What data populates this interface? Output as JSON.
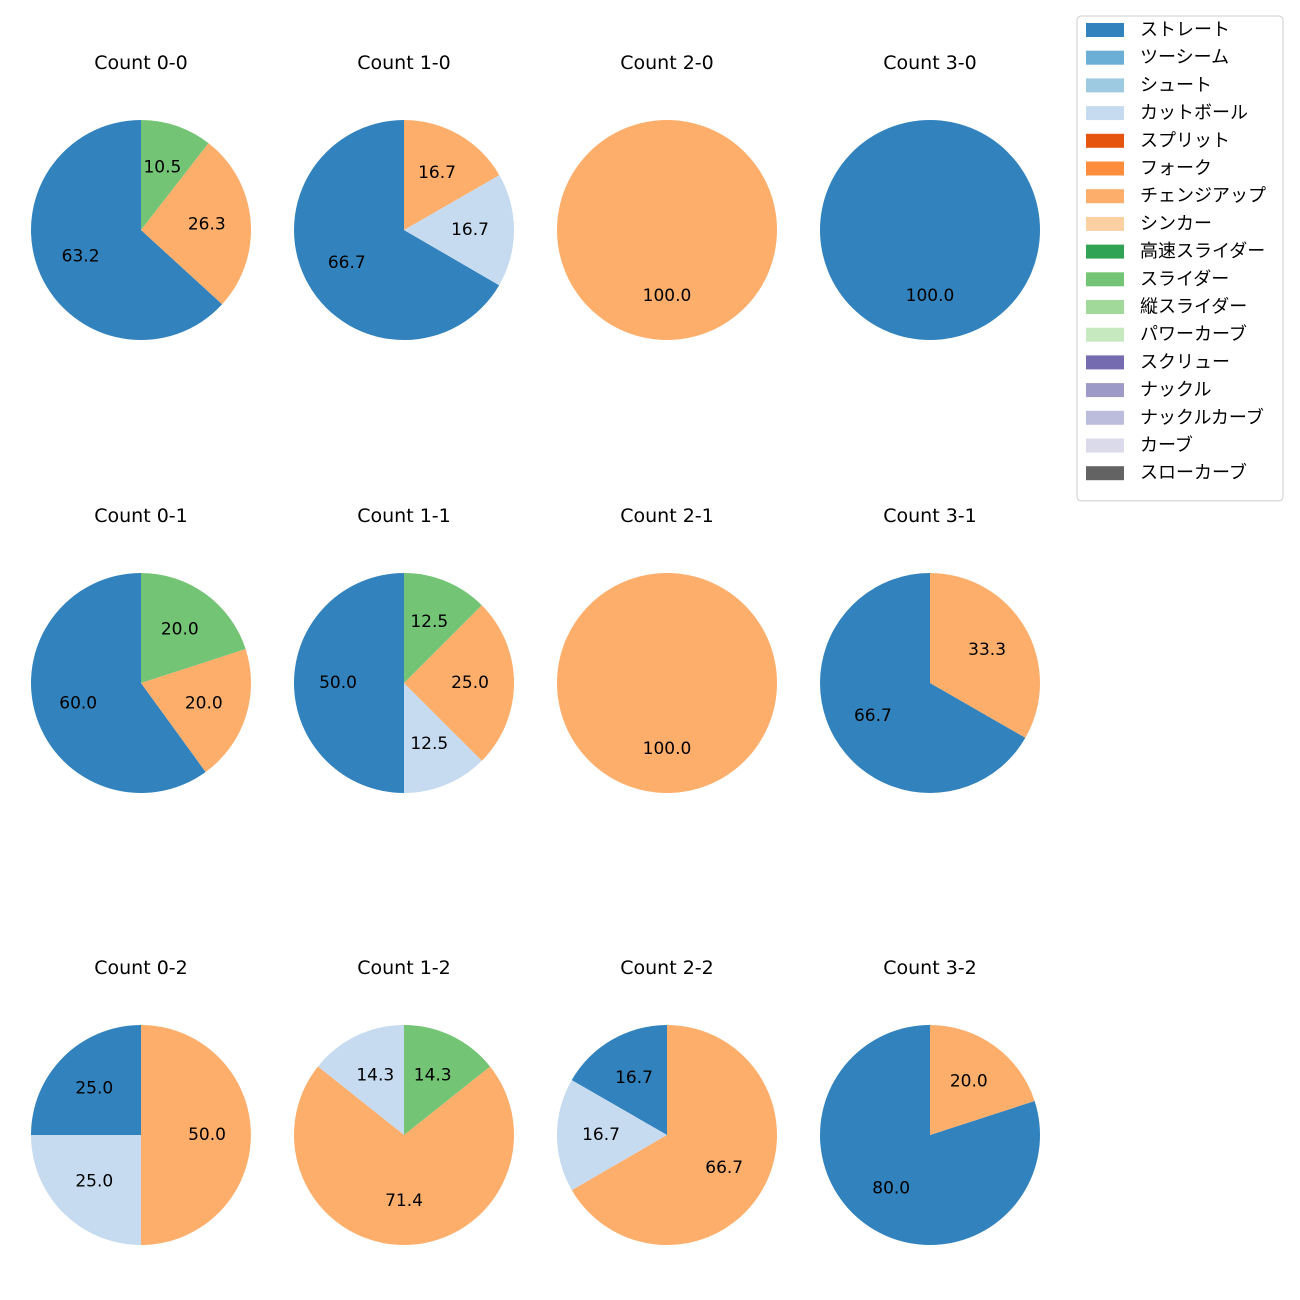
{
  "chart_data": {
    "type": "pie",
    "legend": {
      "placement": "top-right",
      "entries": [
        {
          "name": "ストレート",
          "color": "#3182bd"
        },
        {
          "name": "ツーシーム",
          "color": "#6baed6"
        },
        {
          "name": "シュート",
          "color": "#9ecae1"
        },
        {
          "name": "カットボール",
          "color": "#c6dbef"
        },
        {
          "name": "スプリット",
          "color": "#e6550d"
        },
        {
          "name": "フォーク",
          "color": "#fd8d3c"
        },
        {
          "name": "チェンジアップ",
          "color": "#fdae6b"
        },
        {
          "name": "シンカー",
          "color": "#fdd0a2"
        },
        {
          "name": "高速スライダー",
          "color": "#31a354"
        },
        {
          "name": "スライダー",
          "color": "#74c476"
        },
        {
          "name": "縦スライダー",
          "color": "#a1d99b"
        },
        {
          "name": "パワーカーブ",
          "color": "#c7e9c0"
        },
        {
          "name": "スクリュー",
          "color": "#756bb1"
        },
        {
          "name": "ナックル",
          "color": "#9e9ac8"
        },
        {
          "name": "ナックルカーブ",
          "color": "#bcbddc"
        },
        {
          "name": "カーブ",
          "color": "#dadaeb"
        },
        {
          "name": "スローカーブ",
          "color": "#636363"
        }
      ]
    },
    "charts": [
      {
        "title": "Count 0-0",
        "slices": [
          {
            "pitch": "ストレート",
            "value": 63.2
          },
          {
            "pitch": "チェンジアップ",
            "value": 26.3
          },
          {
            "pitch": "スライダー",
            "value": 10.5
          }
        ]
      },
      {
        "title": "Count 1-0",
        "slices": [
          {
            "pitch": "ストレート",
            "value": 66.7
          },
          {
            "pitch": "カットボール",
            "value": 16.7
          },
          {
            "pitch": "チェンジアップ",
            "value": 16.7
          }
        ]
      },
      {
        "title": "Count 2-0",
        "slices": [
          {
            "pitch": "チェンジアップ",
            "value": 100.0
          }
        ]
      },
      {
        "title": "Count 3-0",
        "slices": [
          {
            "pitch": "ストレート",
            "value": 100.0
          }
        ]
      },
      {
        "title": "Count 0-1",
        "slices": [
          {
            "pitch": "ストレート",
            "value": 60.0
          },
          {
            "pitch": "チェンジアップ",
            "value": 20.0
          },
          {
            "pitch": "スライダー",
            "value": 20.0
          }
        ]
      },
      {
        "title": "Count 1-1",
        "slices": [
          {
            "pitch": "ストレート",
            "value": 50.0
          },
          {
            "pitch": "カットボール",
            "value": 12.5
          },
          {
            "pitch": "チェンジアップ",
            "value": 25.0
          },
          {
            "pitch": "スライダー",
            "value": 12.5
          }
        ]
      },
      {
        "title": "Count 2-1",
        "slices": [
          {
            "pitch": "チェンジアップ",
            "value": 100.0
          }
        ]
      },
      {
        "title": "Count 3-1",
        "slices": [
          {
            "pitch": "ストレート",
            "value": 66.7
          },
          {
            "pitch": "チェンジアップ",
            "value": 33.3
          }
        ]
      },
      {
        "title": "Count 0-2",
        "slices": [
          {
            "pitch": "ストレート",
            "value": 25.0
          },
          {
            "pitch": "カットボール",
            "value": 25.0
          },
          {
            "pitch": "チェンジアップ",
            "value": 50.0
          }
        ]
      },
      {
        "title": "Count 1-2",
        "slices": [
          {
            "pitch": "カットボール",
            "value": 14.3
          },
          {
            "pitch": "チェンジアップ",
            "value": 71.4
          },
          {
            "pitch": "スライダー",
            "value": 14.3
          }
        ]
      },
      {
        "title": "Count 2-2",
        "slices": [
          {
            "pitch": "ストレート",
            "value": 16.7
          },
          {
            "pitch": "カットボール",
            "value": 16.7
          },
          {
            "pitch": "チェンジアップ",
            "value": 66.7
          }
        ]
      },
      {
        "title": "Count 3-2",
        "slices": [
          {
            "pitch": "ストレート",
            "value": 80.0
          },
          {
            "pitch": "チェンジアップ",
            "value": 20.0
          }
        ]
      }
    ]
  }
}
